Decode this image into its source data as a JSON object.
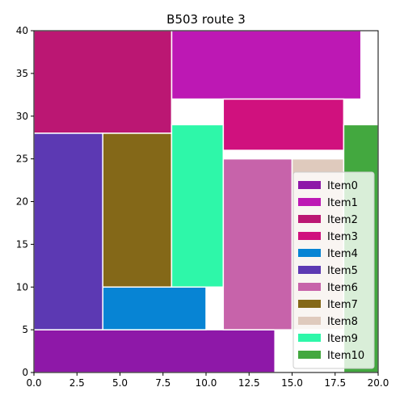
{
  "chart_data": {
    "type": "bar",
    "title": "B503 route 3",
    "xlabel": "",
    "ylabel": "",
    "xlim": [
      0,
      20
    ],
    "ylim": [
      0,
      40
    ],
    "grid": false,
    "legend_position": "lower-right",
    "x_ticks": [
      "0.0",
      "2.5",
      "5.0",
      "7.5",
      "10.0",
      "12.5",
      "15.0",
      "17.5",
      "20.0"
    ],
    "y_ticks": [
      "0",
      "5",
      "10",
      "15",
      "20",
      "25",
      "30",
      "35",
      "40"
    ],
    "items": [
      {
        "name": "Item0",
        "x": 0,
        "y": 0,
        "width": 14,
        "height": 5,
        "color": "#8e18a8"
      },
      {
        "name": "Item1",
        "x": 8,
        "y": 32,
        "width": 11,
        "height": 8,
        "color": "#bd18b4"
      },
      {
        "name": "Item2",
        "x": 0,
        "y": 28,
        "width": 8,
        "height": 12,
        "color": "#bb1773"
      },
      {
        "name": "Item3",
        "x": 11,
        "y": 26,
        "width": 7,
        "height": 6,
        "color": "#d0117e"
      },
      {
        "name": "Item4",
        "x": 4,
        "y": 5,
        "width": 6,
        "height": 5,
        "color": "#0784d4"
      },
      {
        "name": "Item5",
        "x": 0,
        "y": 5,
        "width": 4,
        "height": 23,
        "color": "#5c39b3"
      },
      {
        "name": "Item6",
        "x": 11,
        "y": 5,
        "width": 4,
        "height": 20,
        "color": "#c763aa"
      },
      {
        "name": "Item7",
        "x": 4,
        "y": 10,
        "width": 4,
        "height": 18,
        "color": "#846818"
      },
      {
        "name": "Item8",
        "x": 15,
        "y": 5,
        "width": 3,
        "height": 20,
        "color": "#dfcabd"
      },
      {
        "name": "Item9",
        "x": 8,
        "y": 10,
        "width": 3,
        "height": 19,
        "color": "#2ef7a9"
      },
      {
        "name": "Item10",
        "x": 18,
        "y": 0,
        "width": 2,
        "height": 29,
        "color": "#43a83f"
      }
    ]
  }
}
